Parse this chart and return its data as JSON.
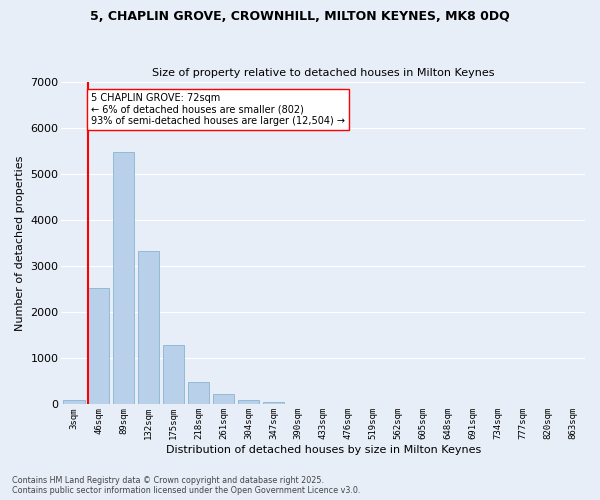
{
  "title_line1": "5, CHAPLIN GROVE, CROWNHILL, MILTON KEYNES, MK8 0DQ",
  "title_line2": "Size of property relative to detached houses in Milton Keynes",
  "xlabel": "Distribution of detached houses by size in Milton Keynes",
  "ylabel": "Number of detached properties",
  "categories": [
    "3sqm",
    "46sqm",
    "89sqm",
    "132sqm",
    "175sqm",
    "218sqm",
    "261sqm",
    "304sqm",
    "347sqm",
    "390sqm",
    "433sqm",
    "476sqm",
    "519sqm",
    "562sqm",
    "605sqm",
    "648sqm",
    "691sqm",
    "734sqm",
    "777sqm",
    "820sqm",
    "863sqm"
  ],
  "bar_values": [
    100,
    2520,
    5480,
    3320,
    1290,
    490,
    220,
    100,
    45,
    0,
    0,
    0,
    0,
    0,
    0,
    0,
    0,
    0,
    0,
    0,
    0
  ],
  "bar_color": "#b8d0ea",
  "bar_edge_color": "#7aadcc",
  "background_color": "#e8eef8",
  "grid_color": "#ffffff",
  "vline_color": "red",
  "vline_x_pos": 0.58,
  "annotation_text": "5 CHAPLIN GROVE: 72sqm\n← 6% of detached houses are smaller (802)\n93% of semi-detached houses are larger (12,504) →",
  "annotation_box_color": "#ffffff",
  "annotation_box_edge": "red",
  "footnote_line1": "Contains HM Land Registry data © Crown copyright and database right 2025.",
  "footnote_line2": "Contains public sector information licensed under the Open Government Licence v3.0.",
  "ylim": [
    0,
    7000
  ],
  "yticks": [
    0,
    1000,
    2000,
    3000,
    4000,
    5000,
    6000,
    7000
  ]
}
